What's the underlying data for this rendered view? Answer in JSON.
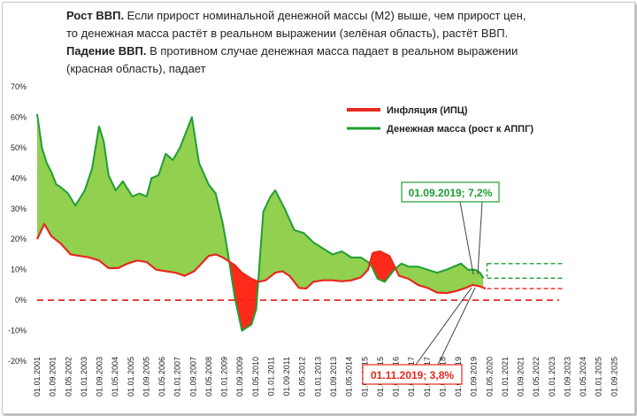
{
  "header": {
    "line1_bold": "Рост ВВП.",
    "line1_rest": " Если прирост номинальной денежной массы (М2) выше, чем прирост цен,",
    "line2": "то денежная масса растёт в реальном выражении (зелёная область), растёт ВВП.",
    "line3_bold": "Падение ВВП.",
    "line3_rest": " В противном случае денежная масса падает в реальном выражении",
    "line4": "(красная область), падает"
  },
  "chart_data": {
    "type": "line",
    "title": "",
    "xlabel": "",
    "ylabel": "",
    "ylim": [
      -20,
      70
    ],
    "y_ticks": [
      "70%",
      "60%",
      "50%",
      "40%",
      "30%",
      "20%",
      "10%",
      "0%",
      "-10%",
      "-20%"
    ],
    "x_ticks": [
      "01.01.2001",
      "01.09.2001",
      "01.05.2002",
      "01.01.2003",
      "01.09.2003",
      "01.05.2004",
      "01.01.2005",
      "01.09.2005",
      "01.05.2006",
      "01.01.2007",
      "01.09.2007",
      "01.05.2008",
      "01.01.2009",
      "01.09.2009",
      "01.05.2010",
      "01.01.2011",
      "01.09.2011",
      "01.05.2012",
      "01.01.2013",
      "01.09.2013",
      "01.05.2014",
      "01.01.2015",
      "01.09.2015",
      "01.05.2016",
      "01.01.2017",
      "01.09.2017",
      "01.05.2018",
      "01.01.2019",
      "01.09.2019",
      "01.05.2020",
      "01.01.2021",
      "01.09.2021",
      "01.05.2022",
      "01.01.2023",
      "01.09.2023",
      "01.05.2024",
      "01.01.2025",
      "01.09.2025"
    ],
    "legend_position": "top-right",
    "series": [
      {
        "name": "Инфляция (ИПЦ)",
        "color": "#e8281e",
        "x": [
          2001.0,
          2001.3,
          2001.6,
          2002.0,
          2002.4,
          2002.8,
          2003.2,
          2003.6,
          2004.0,
          2004.4,
          2004.8,
          2005.2,
          2005.6,
          2006.0,
          2006.4,
          2006.8,
          2007.2,
          2007.6,
          2007.9,
          2008.2,
          2008.5,
          2008.8,
          2009.0,
          2009.3,
          2009.6,
          2010.0,
          2010.3,
          2010.6,
          2011.0,
          2011.3,
          2011.6,
          2012.0,
          2012.3,
          2012.6,
          2013.0,
          2013.4,
          2013.8,
          2014.2,
          2014.6,
          2014.9,
          2015.1,
          2015.4,
          2015.8,
          2016.2,
          2016.6,
          2017.0,
          2017.4,
          2017.8,
          2018.2,
          2018.6,
          2019.0,
          2019.3,
          2019.6,
          2019.84
        ],
        "values": [
          20,
          25,
          21,
          18.5,
          15,
          14.5,
          14,
          13,
          10.5,
          10.5,
          12,
          13,
          12.5,
          10,
          9.5,
          9,
          8,
          9.5,
          12,
          14.5,
          15,
          14,
          13,
          11.5,
          9,
          7,
          6,
          6.5,
          9,
          9.5,
          8,
          4,
          3.8,
          6,
          6.5,
          6.5,
          6.2,
          6.5,
          7.5,
          10,
          15.5,
          16,
          14.5,
          8,
          7,
          5,
          4,
          2.5,
          2.3,
          3,
          4,
          5,
          4.5,
          3.8
        ]
      },
      {
        "name": "Денежная масса (рост к АППГ)",
        "color": "#1f9e32",
        "x": [
          2001.0,
          2001.2,
          2001.4,
          2001.6,
          2001.8,
          2002.0,
          2002.3,
          2002.6,
          2003.0,
          2003.3,
          2003.6,
          2003.8,
          2004.0,
          2004.3,
          2004.6,
          2005.0,
          2005.3,
          2005.6,
          2005.8,
          2006.1,
          2006.4,
          2006.7,
          2007.0,
          2007.3,
          2007.5,
          2007.8,
          2008.2,
          2008.5,
          2008.8,
          2009.0,
          2009.3,
          2009.6,
          2010.0,
          2010.2,
          2010.5,
          2010.8,
          2011.0,
          2011.4,
          2011.8,
          2012.2,
          2012.6,
          2013.0,
          2013.4,
          2013.8,
          2014.2,
          2014.6,
          2015.0,
          2015.3,
          2015.6,
          2016.0,
          2016.3,
          2016.6,
          2017.0,
          2017.4,
          2017.8,
          2018.2,
          2018.5,
          2018.8,
          2019.1,
          2019.4,
          2019.6,
          2019.75
        ],
        "values": [
          61,
          50,
          45,
          42,
          38,
          37,
          35,
          31,
          36,
          43,
          57,
          52,
          41,
          36,
          39,
          34,
          35,
          34,
          40,
          41,
          48,
          46,
          50,
          56,
          60,
          45,
          38,
          35,
          25,
          16,
          1,
          -10,
          -8,
          -3,
          29,
          34,
          36,
          30,
          23,
          22,
          19,
          17,
          15,
          16,
          14,
          14,
          12,
          7,
          6,
          10,
          12,
          11,
          11,
          10,
          9,
          10,
          11,
          12,
          10,
          10,
          9,
          7.2
        ]
      }
    ],
    "forecast_levels": [
      12,
      7.2,
      3.8
    ],
    "annotations": [
      "01.09.2019; 7,2%",
      "01.11.2019; 3,8%"
    ]
  }
}
